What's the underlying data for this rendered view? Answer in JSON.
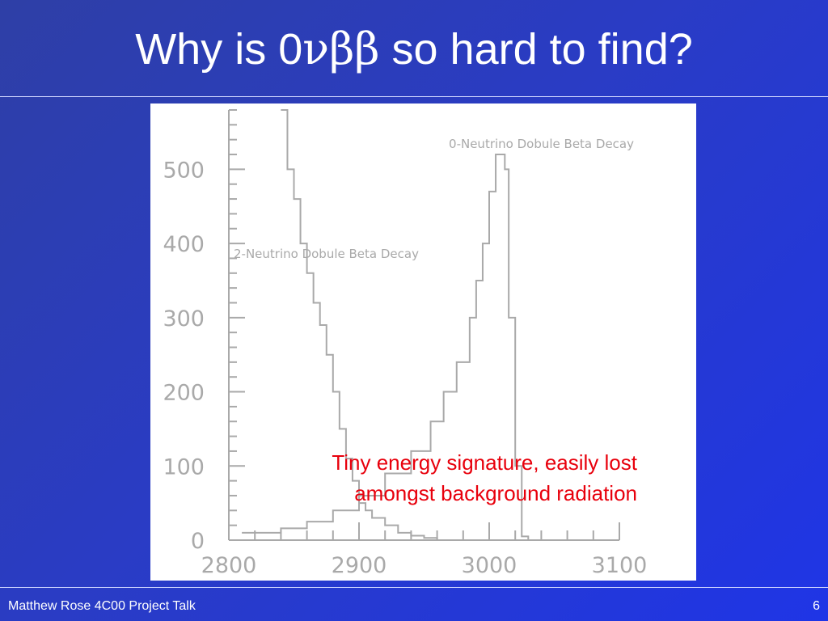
{
  "slide": {
    "title_prefix": "Why is 0",
    "title_greek": "νββ",
    "title_suffix": " so hard to find?",
    "caption_line1": "Tiny energy signature, easily lost",
    "caption_line2": "amongst background radiation",
    "footer_left": "Matthew Rose 4C00 Project Talk",
    "footer_right": "6"
  },
  "colors": {
    "title_text": "#ffffff",
    "caption_text": "#e8000c",
    "plot_line": "#a9a9a9",
    "plot_background": "#ffffff"
  },
  "chart_data": {
    "type": "line",
    "title": "",
    "xlabel": "",
    "ylabel": "",
    "xlim": [
      2800,
      3100
    ],
    "ylim": [
      0,
      580
    ],
    "x_ticks": [
      2800,
      2900,
      3000,
      3100
    ],
    "y_ticks": [
      0,
      100,
      200,
      300,
      400,
      500
    ],
    "x_tick_labels": [
      "2800",
      "2900",
      "3000",
      "3100"
    ],
    "y_tick_labels": [
      "0",
      "100",
      "200",
      "300",
      "400",
      "500"
    ],
    "grid": false,
    "series": [
      {
        "name": "2-Neutrino Dobule Beta Decay",
        "x": [
          2840,
          2845,
          2850,
          2855,
          2860,
          2865,
          2870,
          2875,
          2880,
          2885,
          2890,
          2895,
          2900,
          2905,
          2910,
          2920,
          2930,
          2940,
          2950,
          2960
        ],
        "y": [
          580,
          500,
          460,
          400,
          360,
          320,
          290,
          250,
          200,
          150,
          110,
          80,
          50,
          40,
          30,
          20,
          10,
          6,
          3,
          1
        ]
      },
      {
        "name": "0-Neutrino Dobule Beta Decay",
        "x": [
          2810,
          2840,
          2860,
          2880,
          2900,
          2920,
          2940,
          2955,
          2965,
          2975,
          2985,
          2990,
          2995,
          3000,
          3005,
          3008,
          3012,
          3015,
          3020,
          3025,
          3030
        ],
        "y": [
          10,
          16,
          25,
          40,
          60,
          90,
          120,
          160,
          200,
          240,
          300,
          350,
          400,
          470,
          520,
          520,
          500,
          300,
          100,
          5,
          0
        ]
      }
    ]
  }
}
